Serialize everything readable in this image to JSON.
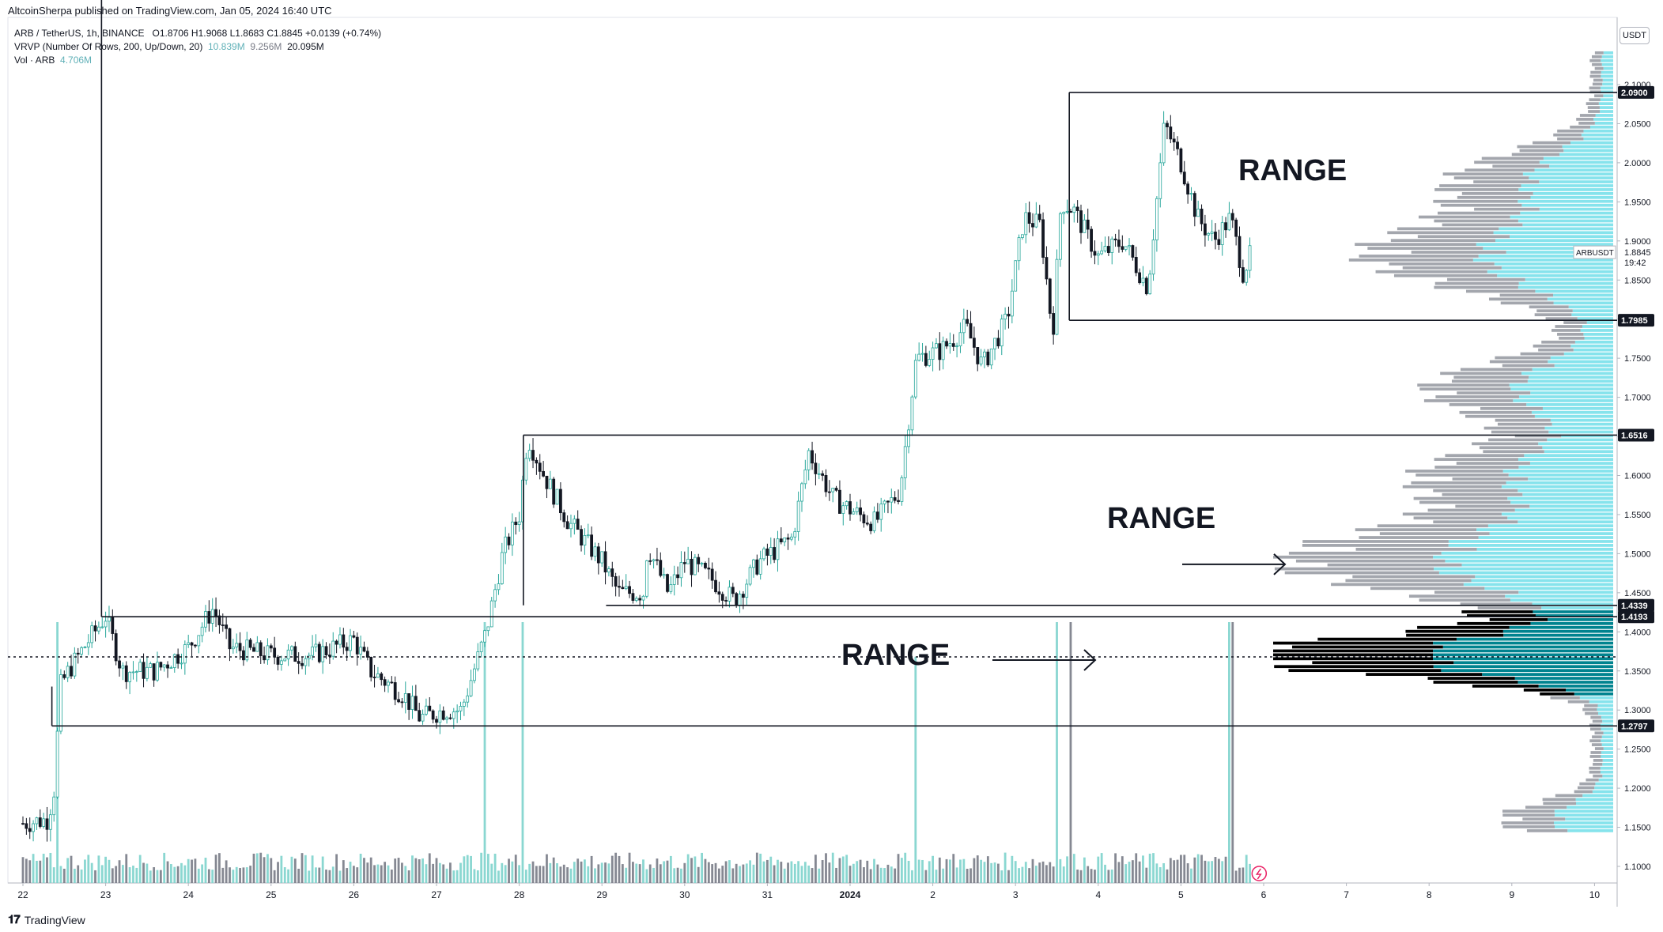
{
  "header": {
    "published_line": "AltcoinSherpa published on TradingView.com, Jan 05, 2024 16:40 UTC"
  },
  "legend": {
    "symbol": "ARB / TetherUS, 1h, BINANCE",
    "ohlc": "O1.8706  H1.9068  L1.8683  C1.8845  +0.0139 (+0.74%)",
    "vrvp_label": "VRVP (Number Of Rows, 200, Up/Down, 20)",
    "vrvp_up": "10.839M",
    "vrvp_down": "9.256M",
    "vrvp_total": "20.095M",
    "vol_label": "Vol · ARB",
    "vol_value": "4.706M"
  },
  "axis": {
    "currency_button": "USDT",
    "symbol_tag": "ARBUSDT",
    "countdown": "19:42"
  },
  "footer": {
    "brand": "TradingView",
    "logo": "tradingview-logo-icon"
  },
  "colors": {
    "up": "#26a69a",
    "down": "#131722",
    "vol_up": "#7dd3cc",
    "vol_down": "#787b86",
    "profile_up": "#86e3ec",
    "profile_down": "#a3a6ad",
    "poc_up": "#00838f",
    "poc_down": "#000000"
  },
  "chart_data": {
    "type": "candlestick",
    "symbol": "ARB / TetherUS",
    "timeframe": "1h",
    "exchange": "BINANCE",
    "x_tick_labels": [
      "22",
      "23",
      "24",
      "25",
      "26",
      "27",
      "28",
      "29",
      "30",
      "31",
      "2024",
      "2",
      "3",
      "4",
      "5",
      "6",
      "7",
      "8",
      "9",
      "10"
    ],
    "y_tick_labels": [
      "1.1000",
      "1.1500",
      "1.2000",
      "1.2500",
      "1.3000",
      "1.3500",
      "1.4000",
      "1.4500",
      "1.5000",
      "1.5500",
      "1.6000",
      "1.6500",
      "1.7000",
      "1.7500",
      "1.8000",
      "1.8500",
      "1.9000",
      "1.9500",
      "2.0000",
      "2.0500",
      "2.1000"
    ],
    "ylim": [
      1.07,
      2.17
    ],
    "last_price": 1.8845,
    "poc_price": 1.368,
    "price_levels": [
      {
        "label": "2.0900",
        "value": 2.09
      },
      {
        "label": "1.7985",
        "value": 1.7985
      },
      {
        "label": "1.6516",
        "value": 1.6516
      },
      {
        "label": "1.4339",
        "value": 1.4339
      },
      {
        "label": "1.4193",
        "value": 1.4193
      },
      {
        "label": "1.2797",
        "value": 1.2797
      }
    ],
    "annotations": [
      {
        "text": "RANGE",
        "range": [
          1.7985,
          2.09
        ]
      },
      {
        "text": "RANGE",
        "range": [
          1.4339,
          1.6516
        ]
      },
      {
        "text": "RANGE",
        "range": [
          1.2797,
          1.4193
        ]
      }
    ],
    "price_path": [
      {
        "day": 0.0,
        "price": 1.155
      },
      {
        "day": 0.3,
        "price": 1.16
      },
      {
        "day": 0.38,
        "price": 1.2
      },
      {
        "day": 0.45,
        "price": 1.33
      },
      {
        "day": 0.55,
        "price": 1.35
      },
      {
        "day": 0.8,
        "price": 1.39
      },
      {
        "day": 1.0,
        "price": 1.42
      },
      {
        "day": 1.2,
        "price": 1.35
      },
      {
        "day": 1.6,
        "price": 1.35
      },
      {
        "day": 2.0,
        "price": 1.38
      },
      {
        "day": 2.3,
        "price": 1.43
      },
      {
        "day": 2.5,
        "price": 1.38
      },
      {
        "day": 3.0,
        "price": 1.37
      },
      {
        "day": 3.5,
        "price": 1.37
      },
      {
        "day": 4.0,
        "price": 1.39
      },
      {
        "day": 4.2,
        "price": 1.35
      },
      {
        "day": 4.6,
        "price": 1.32
      },
      {
        "day": 4.8,
        "price": 1.29
      },
      {
        "day": 5.1,
        "price": 1.3
      },
      {
        "day": 5.3,
        "price": 1.3
      },
      {
        "day": 5.45,
        "price": 1.35
      },
      {
        "day": 5.6,
        "price": 1.4
      },
      {
        "day": 5.8,
        "price": 1.5
      },
      {
        "day": 6.0,
        "price": 1.55
      },
      {
        "day": 6.1,
        "price": 1.65
      },
      {
        "day": 6.3,
        "price": 1.6
      },
      {
        "day": 6.6,
        "price": 1.54
      },
      {
        "day": 7.0,
        "price": 1.49
      },
      {
        "day": 7.2,
        "price": 1.45
      },
      {
        "day": 7.5,
        "price": 1.45
      },
      {
        "day": 7.55,
        "price": 1.51
      },
      {
        "day": 7.8,
        "price": 1.45
      },
      {
        "day": 8.0,
        "price": 1.49
      },
      {
        "day": 8.3,
        "price": 1.47
      },
      {
        "day": 8.6,
        "price": 1.44
      },
      {
        "day": 8.9,
        "price": 1.49
      },
      {
        "day": 9.3,
        "price": 1.52
      },
      {
        "day": 9.5,
        "price": 1.63
      },
      {
        "day": 9.8,
        "price": 1.57
      },
      {
        "day": 10.1,
        "price": 1.55
      },
      {
        "day": 10.3,
        "price": 1.54
      },
      {
        "day": 10.6,
        "price": 1.58
      },
      {
        "day": 10.8,
        "price": 1.75
      },
      {
        "day": 11.1,
        "price": 1.76
      },
      {
        "day": 11.4,
        "price": 1.79
      },
      {
        "day": 11.6,
        "price": 1.74
      },
      {
        "day": 11.9,
        "price": 1.8
      },
      {
        "day": 12.1,
        "price": 1.93
      },
      {
        "day": 12.3,
        "price": 1.92
      },
      {
        "day": 12.45,
        "price": 1.78
      },
      {
        "day": 12.55,
        "price": 1.95
      },
      {
        "day": 12.7,
        "price": 1.94
      },
      {
        "day": 13.0,
        "price": 1.88
      },
      {
        "day": 13.3,
        "price": 1.9
      },
      {
        "day": 13.6,
        "price": 1.84
      },
      {
        "day": 13.8,
        "price": 2.05
      },
      {
        "day": 14.0,
        "price": 2.0
      },
      {
        "day": 14.2,
        "price": 1.93
      },
      {
        "day": 14.4,
        "price": 1.9
      },
      {
        "day": 14.6,
        "price": 1.93
      },
      {
        "day": 14.75,
        "price": 1.86
      },
      {
        "day": 14.85,
        "price": 1.8845
      }
    ],
    "volume_spikes": [
      {
        "day": 0.42,
        "value": 1.0
      },
      {
        "day": 5.6,
        "value": 0.95
      },
      {
        "day": 6.05,
        "value": 0.9
      },
      {
        "day": 10.8,
        "value": 0.7
      },
      {
        "day": 12.5,
        "value": 4.5
      },
      {
        "day": 12.65,
        "value": 1.9
      },
      {
        "day": 14.6,
        "value": 0.95
      }
    ]
  }
}
